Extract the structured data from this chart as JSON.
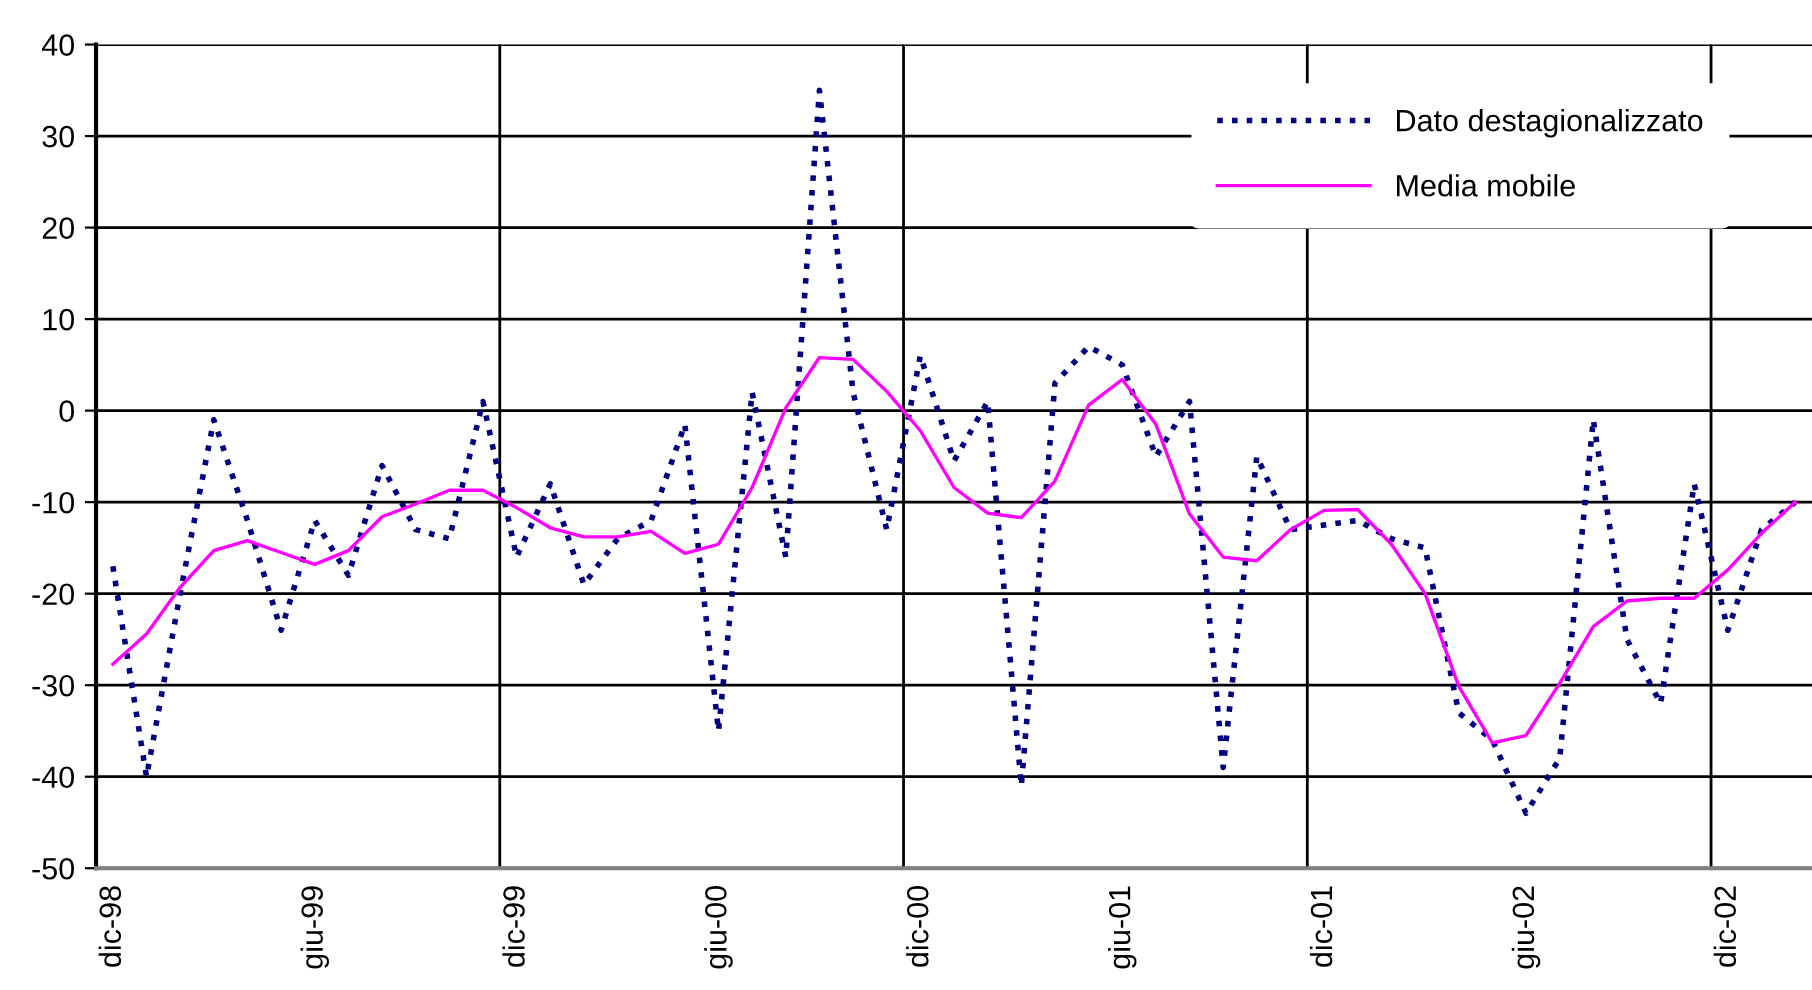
{
  "chart_data": {
    "type": "line",
    "categories": [
      "dic-98",
      null,
      null,
      null,
      null,
      null,
      "giu-99",
      null,
      null,
      null,
      null,
      null,
      "dic-99",
      null,
      null,
      null,
      null,
      null,
      "giu-00",
      null,
      null,
      null,
      null,
      null,
      "dic-00",
      null,
      null,
      null,
      null,
      null,
      "giu-01",
      null,
      null,
      null,
      null,
      null,
      "dic-01",
      null,
      null,
      null,
      null,
      null,
      "giu-02",
      null,
      null,
      null,
      null,
      null,
      "dic-02",
      null,
      null
    ],
    "series": [
      {
        "name": "Dato destagionalizzato",
        "color": "#000080",
        "line_style": "dotted",
        "values": [
          -17,
          -40,
          -20,
          -1,
          -12,
          -24,
          -12,
          -18,
          -6,
          -13,
          -14,
          1,
          -16,
          -8,
          -19,
          -14,
          -12,
          -1.5,
          -35,
          2,
          -16,
          35,
          2,
          -13,
          6,
          -5.5,
          1,
          -41,
          3,
          7,
          5,
          -5,
          1,
          -39,
          -5,
          -13,
          -12.5,
          -12,
          -14,
          -15,
          -33,
          -36,
          -44,
          -38,
          -1,
          -25,
          -32,
          -8,
          -24,
          -13,
          -10
        ]
      },
      {
        "name": "Media mobile",
        "color": "#ff00ff",
        "line_style": "solid",
        "values": [
          -27.7,
          -24.4,
          -19.3,
          -15.3,
          -14.2,
          -15.5,
          -16.8,
          -15.3,
          -11.6,
          -10.2,
          -8.7,
          -8.7,
          -10.6,
          -12.8,
          -13.8,
          -13.8,
          -13.2,
          -15.6,
          -14.6,
          -8.4,
          0.3,
          5.8,
          5.6,
          2.1,
          -2.2,
          -8.4,
          -11.2,
          -11.7,
          -7.7,
          0.6,
          3.4,
          -1.5,
          -11.3,
          -16,
          -16.4,
          -13,
          -10.9,
          -10.8,
          -14.6,
          -20,
          -30.1,
          -36.3,
          -35.5,
          -29.8,
          -23.6,
          -20.8,
          -20.5,
          -20.5,
          -17.4,
          -13.4,
          -10
        ]
      }
    ],
    "ylim": [
      -50,
      40
    ],
    "yticks": [
      -50,
      -40,
      -30,
      -20,
      -10,
      0,
      10,
      20,
      30,
      40
    ],
    "grid": true,
    "legend": "top right",
    "marker": "none"
  }
}
